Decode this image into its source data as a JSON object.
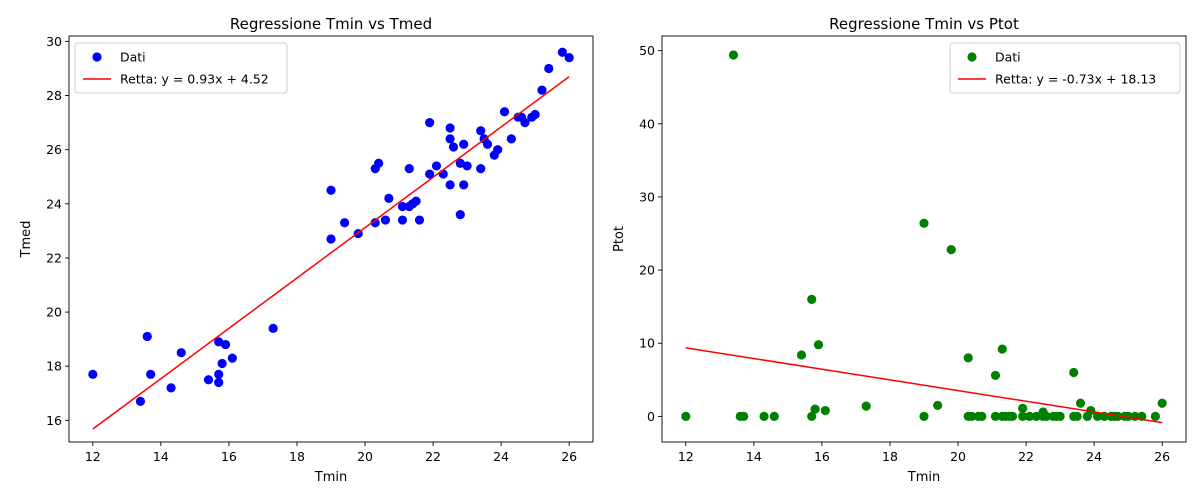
{
  "chart_data": [
    {
      "type": "scatter",
      "title": "Regressione Tmin vs Tmed",
      "xlabel": "Tmin",
      "ylabel": "Tmed",
      "xlim": [
        11.3,
        26.7
      ],
      "ylim": [
        15.2,
        30.2
      ],
      "xticks": [
        "12",
        "14",
        "16",
        "18",
        "20",
        "22",
        "24",
        "26"
      ],
      "yticks": [
        "16",
        "18",
        "20",
        "22",
        "24",
        "26",
        "28",
        "30"
      ],
      "legend_position": "top-left",
      "series": [
        {
          "name": "Dati",
          "color": "#0000ff",
          "x": [
            12.0,
            13.4,
            13.6,
            13.7,
            14.3,
            14.6,
            15.4,
            15.7,
            15.7,
            15.7,
            15.8,
            15.9,
            16.1,
            17.3,
            19.0,
            19.0,
            19.4,
            19.8,
            20.3,
            20.3,
            20.4,
            20.6,
            20.7,
            21.1,
            21.1,
            21.3,
            21.3,
            21.4,
            21.5,
            21.6,
            21.9,
            21.9,
            22.1,
            22.3,
            22.5,
            22.5,
            22.5,
            22.6,
            22.8,
            22.8,
            22.9,
            22.9,
            23.0,
            23.4,
            23.4,
            23.5,
            23.6,
            23.8,
            23.9,
            24.1,
            24.3,
            24.5,
            24.6,
            24.7,
            24.9,
            25.0,
            25.2,
            25.4,
            25.8,
            26.0
          ],
          "y": [
            17.7,
            16.7,
            19.1,
            17.7,
            17.2,
            18.5,
            17.5,
            17.4,
            17.7,
            18.9,
            18.1,
            18.8,
            18.3,
            19.4,
            22.7,
            24.5,
            23.3,
            22.9,
            23.3,
            25.3,
            25.5,
            23.4,
            24.2,
            23.4,
            23.9,
            23.9,
            25.3,
            24.0,
            24.1,
            23.4,
            25.1,
            27.0,
            25.4,
            25.1,
            24.7,
            26.4,
            26.8,
            26.1,
            25.5,
            23.6,
            24.7,
            26.2,
            25.4,
            25.3,
            26.7,
            26.4,
            26.2,
            25.8,
            26.0,
            27.4,
            26.4,
            27.2,
            27.2,
            27.0,
            27.2,
            27.3,
            28.2,
            29.0,
            29.6,
            29.4
          ]
        },
        {
          "name": "Retta: y = 0.93x + 4.52",
          "color": "#ff0000",
          "type": "line",
          "x": [
            12.0,
            26.0
          ],
          "y": [
            15.68,
            28.7
          ]
        }
      ]
    },
    {
      "type": "scatter",
      "title": "Regressione Tmin vs Ptot",
      "xlabel": "Tmin",
      "ylabel": "Ptot",
      "xlim": [
        11.3,
        26.7
      ],
      "ylim": [
        -3.5,
        52.0
      ],
      "xticks": [
        "12",
        "14",
        "16",
        "18",
        "20",
        "22",
        "24",
        "26"
      ],
      "yticks": [
        "0",
        "10",
        "20",
        "30",
        "40",
        "50"
      ],
      "legend_position": "top-right",
      "series": [
        {
          "name": "Dati",
          "color": "#008000",
          "x": [
            12.0,
            13.4,
            13.6,
            13.7,
            14.3,
            14.6,
            15.4,
            15.7,
            15.7,
            15.8,
            15.9,
            16.1,
            17.3,
            19.0,
            19.0,
            19.4,
            19.8,
            20.3,
            20.3,
            20.4,
            20.6,
            20.7,
            21.1,
            21.1,
            21.3,
            21.3,
            21.4,
            21.5,
            21.6,
            21.9,
            21.9,
            22.1,
            22.3,
            22.5,
            22.5,
            22.6,
            22.8,
            22.9,
            23.0,
            23.4,
            23.4,
            23.5,
            23.6,
            23.8,
            23.9,
            24.1,
            24.3,
            24.5,
            24.6,
            24.7,
            24.9,
            25.0,
            25.2,
            25.4,
            25.8,
            26.0
          ],
          "y": [
            0.0,
            49.4,
            0.0,
            0.0,
            0.0,
            0.0,
            8.4,
            16.0,
            0.0,
            1.0,
            9.8,
            0.8,
            1.4,
            26.4,
            0.0,
            1.5,
            22.8,
            8.0,
            0.0,
            0.0,
            0.0,
            0.0,
            5.6,
            0.0,
            9.2,
            0.0,
            0.0,
            0.0,
            0.0,
            1.1,
            0.0,
            0.0,
            0.0,
            0.0,
            0.6,
            0.0,
            0.0,
            0.0,
            0.0,
            6.0,
            0.0,
            0.0,
            1.8,
            0.0,
            0.8,
            0.0,
            0.0,
            0.0,
            0.0,
            0.0,
            0.0,
            0.0,
            0.0,
            0.0,
            0.0,
            1.8
          ]
        },
        {
          "name": "Retta: y = -0.73x + 18.13",
          "color": "#ff0000",
          "type": "line",
          "x": [
            12.0,
            26.0
          ],
          "y": [
            9.37,
            -0.85
          ]
        }
      ]
    }
  ]
}
